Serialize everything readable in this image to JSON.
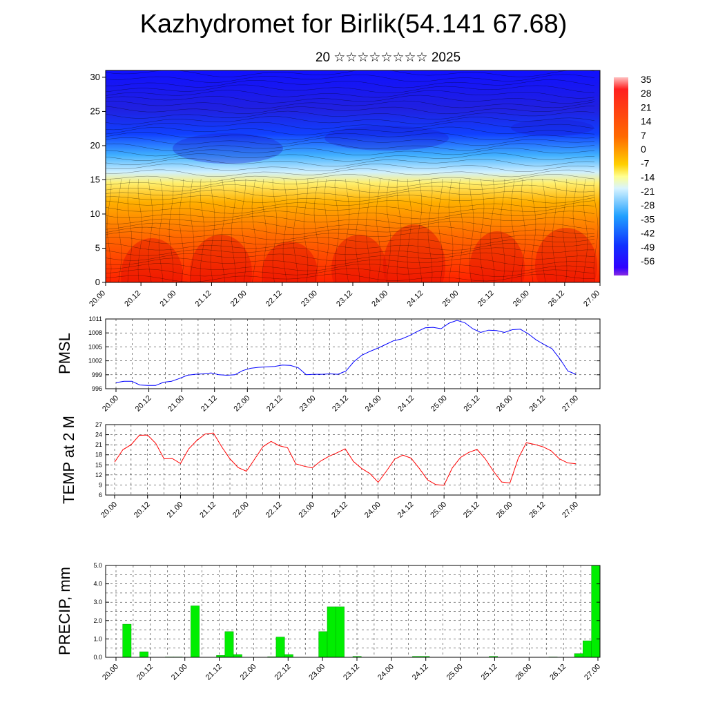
{
  "page": {
    "title": "Kazhydromet for Birlik(54.141 67.68)",
    "subtitle": "20 ☆☆☆☆☆☆☆☆ 2025"
  },
  "chart_data": [
    {
      "type": "heatmap",
      "name": "cross-section",
      "x_ticks": [
        "20.00",
        "20.12",
        "21.00",
        "21.12",
        "22.00",
        "22.12",
        "23.00",
        "23.12",
        "24.00",
        "24.12",
        "25.00",
        "25.12",
        "26.00",
        "26.12",
        "27.00"
      ],
      "y_ticks": [
        0,
        5,
        10,
        15,
        20,
        25,
        30
      ],
      "ylim": [
        0,
        31
      ],
      "colorbar_labels": [
        35,
        28,
        21,
        14,
        7,
        0,
        -7,
        -14,
        -21,
        -28,
        -35,
        -42,
        -49,
        -56
      ],
      "colors": {
        "warm": "#ff0000",
        "mid": "#ffff80",
        "cold": "#0000ff",
        "violet": "#8a2be2"
      }
    },
    {
      "type": "line",
      "name": "pmsl",
      "ylabel": "PMSL",
      "ylim": [
        996,
        1011
      ],
      "y_ticks": [
        996,
        999,
        1002,
        1005,
        1008,
        1011
      ],
      "x_ticks": [
        "20.00",
        "20.12",
        "21.00",
        "21.12",
        "22.00",
        "22.12",
        "23.00",
        "23.12",
        "24.00",
        "24.12",
        "25.00",
        "25.12",
        "26.00",
        "26.12",
        "27.00"
      ],
      "series": [
        {
          "color": "#0000ff",
          "values": [
            997.3,
            997.6,
            997.6,
            996.8,
            996.7,
            996.7,
            997.4,
            997.6,
            998.2,
            998.9,
            999.1,
            999.2,
            999.4,
            999.0,
            998.9,
            999.0,
            999.9,
            1000.4,
            1000.6,
            1000.7,
            1000.8,
            1001.1,
            1001.0,
            1000.5,
            999.0,
            999.1,
            999.1,
            999.2,
            999.1,
            999.8,
            1001.8,
            1003.2,
            1004.0,
            1004.7,
            1005.5,
            1006.3,
            1006.7,
            1007.4,
            1008.3,
            1009.1,
            1009.2,
            1008.9,
            1010.1,
            1010.7,
            1010.2,
            1008.9,
            1008.1,
            1008.6,
            1008.5,
            1008.1,
            1008.7,
            1008.8,
            1007.8,
            1006.5,
            1005.5,
            1004.6,
            1002.4,
            999.8,
            999.1
          ]
        }
      ]
    },
    {
      "type": "line",
      "name": "temp",
      "ylabel": "TEMP at 2 M",
      "ylim": [
        6,
        27
      ],
      "y_ticks": [
        6,
        9,
        12,
        15,
        18,
        21,
        24,
        27
      ],
      "x_ticks": [
        "20.00",
        "20.12",
        "21.00",
        "21.12",
        "22.00",
        "22.12",
        "23.00",
        "23.12",
        "24.00",
        "24.12",
        "25.00",
        "25.12",
        "26.00",
        "26.12",
        "27.00"
      ],
      "series": [
        {
          "color": "#ff0000",
          "values": [
            15.8,
            19.5,
            21.0,
            23.8,
            23.9,
            21.4,
            16.8,
            16.9,
            15.4,
            19.8,
            22.3,
            24.2,
            24.5,
            20.4,
            16.8,
            14.2,
            13.1,
            16.7,
            20.4,
            22.0,
            20.7,
            20.1,
            15.3,
            14.6,
            14.1,
            16.1,
            17.5,
            18.6,
            19.8,
            16.0,
            13.9,
            12.4,
            9.8,
            13.1,
            16.7,
            17.9,
            17.0,
            13.9,
            10.5,
            9.1,
            8.9,
            14.1,
            17.2,
            18.7,
            19.6,
            16.8,
            13.1,
            9.9,
            9.6,
            16.9,
            21.6,
            21.1,
            20.4,
            19.2,
            16.8,
            15.6,
            15.3
          ]
        }
      ]
    },
    {
      "type": "bar",
      "name": "precip",
      "ylabel": "PRECIP, mm",
      "ylim": [
        0,
        5
      ],
      "y_ticks": [
        "0.0",
        "1.0",
        "2.0",
        "3.0",
        "4.0",
        "5.0"
      ],
      "x_ticks": [
        "20.00",
        "20.12",
        "21.00",
        "21.12",
        "22.00",
        "22.12",
        "23.00",
        "23.12",
        "24.00",
        "24.12",
        "25.00",
        "25.12",
        "26.00",
        "26.12",
        "27.00"
      ],
      "color": "#00ee00",
      "values": [
        0,
        0,
        1.8,
        0,
        0.3,
        0,
        0,
        0.02,
        0.02,
        0,
        2.8,
        0,
        0,
        0.1,
        1.4,
        0.15,
        0,
        0,
        0,
        0.03,
        1.1,
        0.15,
        0,
        0,
        0,
        1.4,
        2.75,
        2.75,
        0,
        0.05,
        0,
        0,
        0,
        0,
        0,
        0,
        0.05,
        0.05,
        0,
        0,
        0,
        0,
        0,
        0,
        0,
        0.05,
        0,
        0,
        0,
        0,
        0,
        0,
        0.02,
        0,
        0,
        0.2,
        0.9,
        5.0
      ]
    }
  ]
}
